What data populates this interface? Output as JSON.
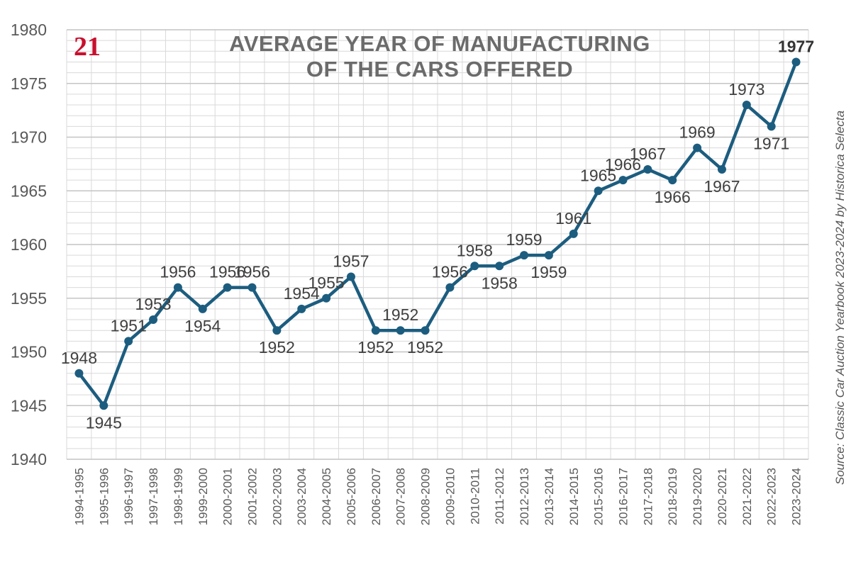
{
  "badge": {
    "number": "21"
  },
  "title": {
    "line1": "AVERAGE YEAR OF MANUFACTURING",
    "line2": "OF THE CARS OFFERED"
  },
  "source": "Source: Classic Car Auction Yearbook 2023-2024 by Historica Selecta",
  "colors": {
    "line": "#1c5d7f",
    "grid": "#d9d9d9",
    "axis_text": "#595959",
    "label_text": "#404040",
    "badge": "#c8102e"
  },
  "chart_data": {
    "type": "line",
    "title": "AVERAGE YEAR OF MANUFACTURING OF THE CARS OFFERED",
    "xlabel": "",
    "ylabel": "",
    "ylim": [
      1940,
      1980
    ],
    "yticks": [
      1940,
      1945,
      1950,
      1955,
      1960,
      1965,
      1970,
      1975,
      1980
    ],
    "grid": true,
    "categories": [
      "1994-1995",
      "1995-1996",
      "1996-1997",
      "1997-1998",
      "1998-1999",
      "1999-2000",
      "2000-2001",
      "2001-2002",
      "2002-2003",
      "2003-2004",
      "2004-2005",
      "2005-2006",
      "2006-2007",
      "2007-2008",
      "2008-2009",
      "2009-2010",
      "2010-2011",
      "2011-2012",
      "2012-2013",
      "2013-2014",
      "2014-2015",
      "2015-2016",
      "2016-2017",
      "2017-2018",
      "2018-2019",
      "2019-2020",
      "2020-2021",
      "2021-2022",
      "2022-2023",
      "2023-2024"
    ],
    "series": [
      {
        "name": "Average year of manufacturing",
        "values": [
          1948,
          1945,
          1951,
          1953,
          1956,
          1954,
          1956,
          1956,
          1952,
          1954,
          1955,
          1957,
          1952,
          1952,
          1952,
          1956,
          1958,
          1958,
          1959,
          1959,
          1961,
          1965,
          1966,
          1967,
          1966,
          1969,
          1967,
          1973,
          1971,
          1977
        ],
        "labels": [
          "1948",
          "1945",
          "1951",
          "1953",
          "1956",
          "1954",
          "1956",
          "1956",
          "1952",
          "1954",
          "1955",
          "1957",
          "1952",
          "1952",
          "1952",
          "1956",
          "1958",
          "1958",
          "1959",
          "1959",
          "1961",
          "1965",
          "1966",
          "1967",
          "1966",
          "1969",
          "1967",
          "1973",
          "1971",
          "1977"
        ]
      }
    ]
  }
}
